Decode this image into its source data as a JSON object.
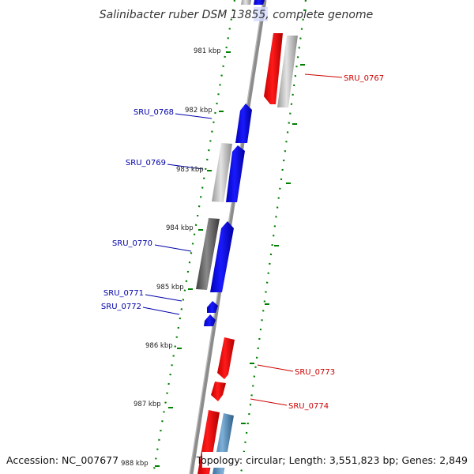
{
  "title": "Salinibacter ruber DSM 13855, complete genome",
  "footer": {
    "accession": "Accession: NC_007677",
    "summary": "Topology: circular; Length: 3,551,823 bp; Genes: 2,849"
  },
  "colors": {
    "forward_cds": "#ff0000",
    "reverse_cds": "#0000ff",
    "rna_gene": "#b0b0b0",
    "tick": "#008000",
    "backbone": "#808080",
    "forward_label": "#cc0000",
    "reverse_label": "#0000aa"
  },
  "kbp_marks": [
    "981 kbp",
    "982 kbp",
    "983 kbp",
    "984 kbp",
    "985 kbp",
    "986 kbp",
    "987 kbp",
    "988 kbp"
  ],
  "gene_labels": {
    "forward": [
      "SRU_0767",
      "SRU_0773",
      "SRU_0774"
    ],
    "reverse": [
      "SRU_0768",
      "SRU_0769",
      "SRU_0770",
      "SRU_0771",
      "SRU_0772"
    ]
  }
}
